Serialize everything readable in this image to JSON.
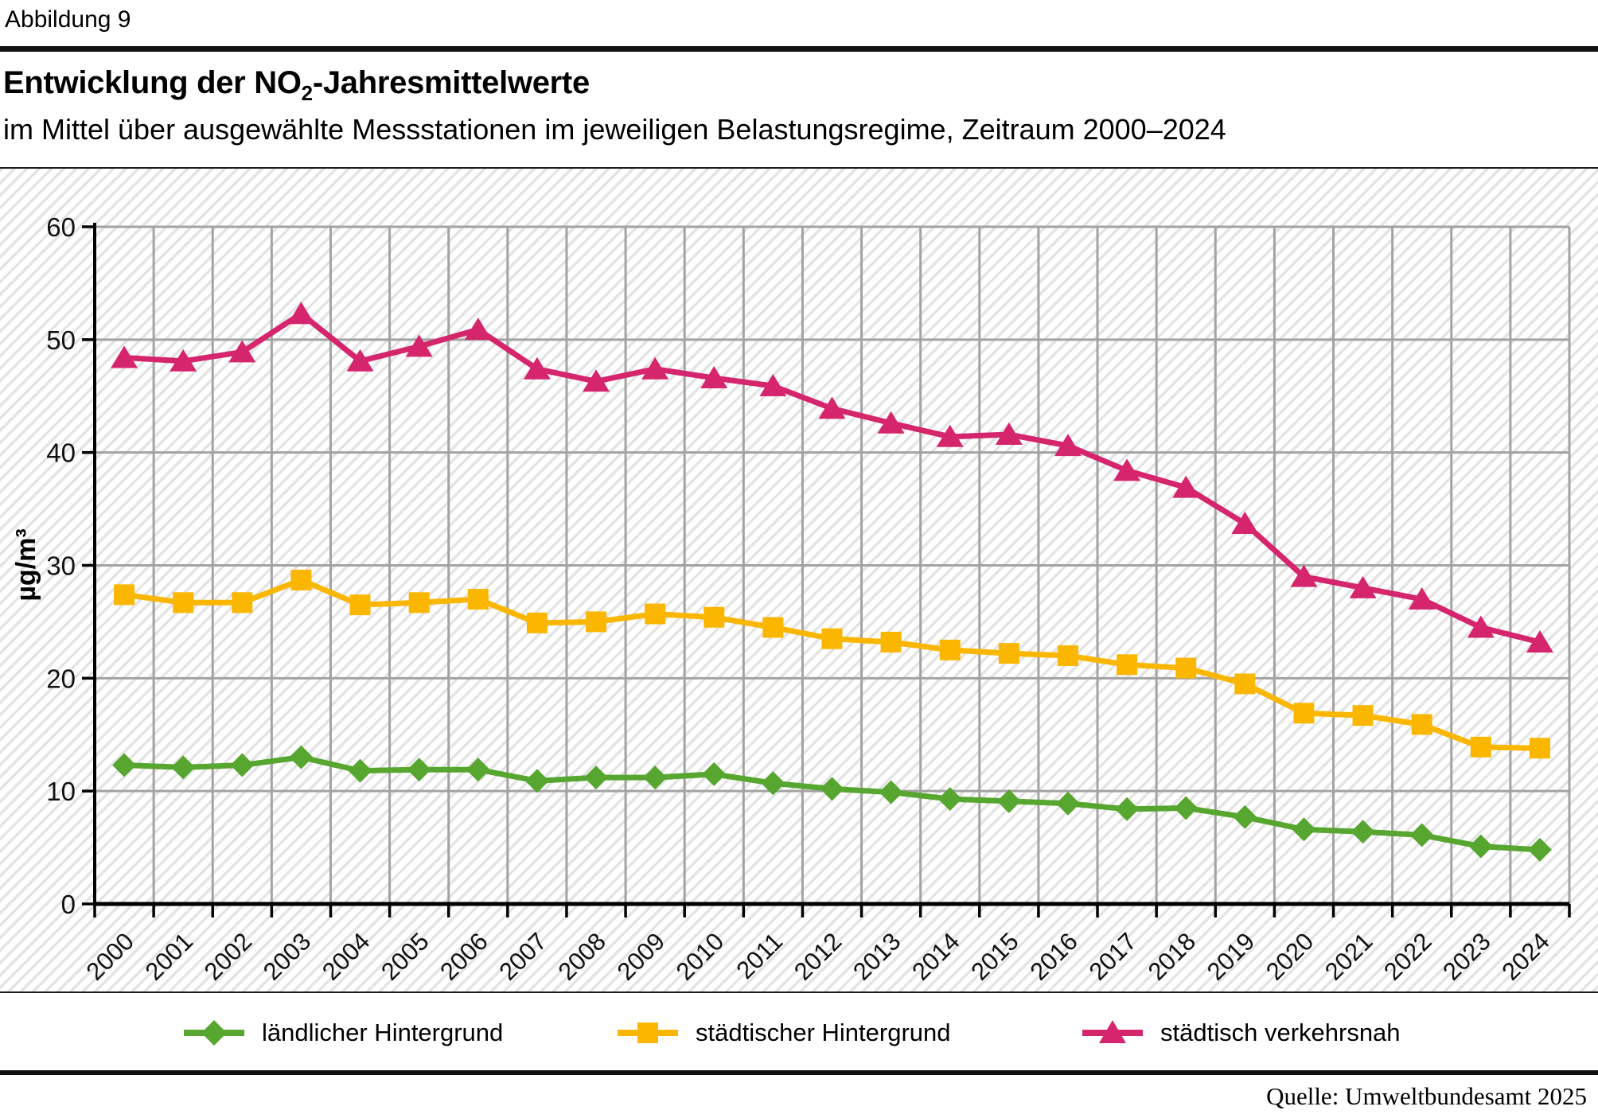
{
  "figure_label": "Abbildung 9",
  "title": {
    "prefix": "Entwicklung der NO",
    "subscript": "2",
    "suffix": "-Jahresmittelwerte"
  },
  "subtitle": "im Mittel über ausgewählte Messstationen im jeweiligen Belastungsregime, Zeitraum 2000–2024",
  "source": "Quelle: Umweltbundesamt 2025",
  "chart_data": {
    "type": "line",
    "title": "Entwicklung der NO2-Jahresmittelwerte",
    "ylabel": "µg/m³",
    "xlabel": "",
    "ylim": [
      0,
      60
    ],
    "ytick_step": 10,
    "grid": true,
    "legend_position": "bottom",
    "categories": [
      "2000",
      "2001",
      "2002",
      "2003",
      "2004",
      "2005",
      "2006",
      "2007",
      "2008",
      "2009",
      "2010",
      "2011",
      "2012",
      "2013",
      "2014",
      "2015",
      "2016",
      "2017",
      "2018",
      "2019",
      "2020",
      "2021",
      "2022",
      "2023",
      "2024"
    ],
    "series": [
      {
        "name": "ländlicher Hintergrund",
        "marker": "diamond",
        "color": "#56a62f",
        "values": [
          12.3,
          12.1,
          12.3,
          13.0,
          11.8,
          11.9,
          11.9,
          10.9,
          11.2,
          11.2,
          11.5,
          10.7,
          10.2,
          9.9,
          9.3,
          9.1,
          8.9,
          8.4,
          8.5,
          7.7,
          6.6,
          6.4,
          6.1,
          5.1,
          4.8
        ]
      },
      {
        "name": "städtischer Hintergrund",
        "marker": "square",
        "color": "#fbb600",
        "values": [
          27.4,
          26.7,
          26.7,
          28.7,
          26.5,
          26.7,
          27.0,
          24.9,
          25.0,
          25.7,
          25.4,
          24.5,
          23.5,
          23.2,
          22.5,
          22.2,
          22.0,
          21.2,
          20.9,
          19.5,
          16.9,
          16.7,
          15.9,
          13.9,
          13.8
        ]
      },
      {
        "name": "städtisch verkehrsnah",
        "marker": "triangle",
        "color": "#d5256d",
        "values": [
          48.4,
          48.1,
          48.9,
          52.3,
          48.1,
          49.4,
          50.9,
          47.4,
          46.3,
          47.4,
          46.6,
          45.9,
          43.9,
          42.6,
          41.4,
          41.6,
          40.6,
          38.4,
          36.9,
          33.7,
          29.0,
          28.0,
          27.0,
          24.5,
          23.2
        ]
      }
    ],
    "style": {
      "gridline_color": "#a3a3a3",
      "axis_color": "#000000",
      "hatch_color": "#e4e4e4",
      "tick_label_color": "#111111"
    }
  }
}
